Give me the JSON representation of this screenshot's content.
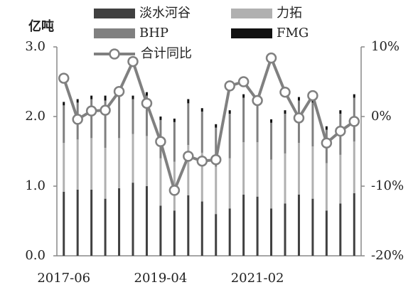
{
  "chart_data": {
    "type": "bar",
    "y_label": "亿吨",
    "categories": [
      "2017-06",
      null,
      null,
      null,
      null,
      null,
      null,
      "2019-04",
      null,
      null,
      null,
      null,
      null,
      null,
      "2021-02",
      null,
      null,
      null,
      null,
      null,
      null,
      null
    ],
    "series": [
      {
        "name": "淡水河谷",
        "color": "#404040",
        "values": [
          0.92,
          0.95,
          0.95,
          0.82,
          0.97,
          1.05,
          1.0,
          0.72,
          0.65,
          0.87,
          0.78,
          0.6,
          0.68,
          0.88,
          0.85,
          0.68,
          0.75,
          0.88,
          0.82,
          0.65,
          0.75,
          0.9
        ]
      },
      {
        "name": "力拓",
        "color": "#b0b0b0",
        "values": [
          0.7,
          0.72,
          0.74,
          0.73,
          0.72,
          0.7,
          0.72,
          0.68,
          0.7,
          0.72,
          0.7,
          0.68,
          0.72,
          0.75,
          0.78,
          0.7,
          0.72,
          0.74,
          0.75,
          0.68,
          0.7,
          0.74
        ]
      },
      {
        "name": "BHP",
        "color": "#808080",
        "values": [
          0.54,
          0.53,
          0.56,
          0.68,
          0.6,
          0.5,
          0.58,
          0.55,
          0.57,
          0.6,
          0.59,
          0.56,
          0.64,
          0.64,
          0.62,
          0.53,
          0.57,
          0.61,
          0.63,
          0.48,
          0.59,
          0.63
        ]
      },
      {
        "name": "FMG",
        "color": "#111111",
        "values": [
          0.05,
          0.05,
          0.05,
          0.07,
          0.06,
          0.05,
          0.05,
          0.05,
          0.05,
          0.06,
          0.05,
          0.05,
          0.05,
          0.05,
          0.05,
          0.05,
          0.05,
          0.05,
          0.05,
          0.05,
          0.05,
          0.05
        ]
      },
      {
        "name": "合计同比",
        "type": "line",
        "axis": "y2",
        "color": "#808080",
        "values": [
          5.5,
          -0.4,
          0.8,
          0.9,
          3.6,
          7.9,
          1.9,
          -3.6,
          -10.6,
          -5.7,
          -6.4,
          -6.2,
          4.4,
          5.0,
          2.3,
          8.4,
          3.5,
          -0.2,
          3.0,
          -3.8,
          -2.1,
          -0.7
        ]
      }
    ],
    "ylim": [
      0,
      3
    ],
    "yticks": [
      {
        "value": 0,
        "label": "0.0"
      },
      {
        "value": 1,
        "label": "1.0"
      },
      {
        "value": 2,
        "label": "2.0"
      },
      {
        "value": 3,
        "label": "3.0"
      }
    ],
    "y2lim": [
      -20,
      10
    ],
    "y2ticks": [
      {
        "value": -20,
        "label": "-20%"
      },
      {
        "value": -10,
        "label": "-10%"
      },
      {
        "value": 0,
        "label": "0%"
      },
      {
        "value": 10,
        "label": "10%"
      }
    ],
    "stacked": true
  }
}
